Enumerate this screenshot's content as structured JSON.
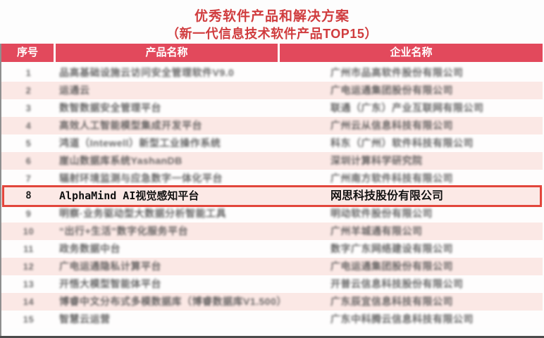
{
  "title": "优秀软件产品和解决方案",
  "subtitle": "（新一代信息技术软件产品TOP15）",
  "table": {
    "headers": [
      "序号",
      "产品名称",
      "企业名称"
    ],
    "rows": [
      {
        "no": "1",
        "product": "品高基础设施云访问安全管理软件V9.0",
        "company": "广州市品高软件股份有限公司",
        "highlight": false,
        "blurred": true
      },
      {
        "no": "2",
        "product": "运通云",
        "company": "广电运通集团股份有限公司",
        "highlight": false,
        "blurred": true
      },
      {
        "no": "3",
        "product": "数智数据安全管理平台",
        "company": "联通（广东）产业互联网有限公司",
        "highlight": false,
        "blurred": true
      },
      {
        "no": "4",
        "product": "高效人工智能模型集成开发平台",
        "company": "广州云从信息科技有限公司",
        "highlight": false,
        "blurred": true
      },
      {
        "no": "5",
        "product": "鸿道（Intewell）新型工业操作系统",
        "company": "科东（广州）软件科技有限公司",
        "highlight": false,
        "blurred": true
      },
      {
        "no": "6",
        "product": "崖山数据库系统YashanDB",
        "company": "深圳计算科学研究院",
        "highlight": false,
        "blurred": true
      },
      {
        "no": "7",
        "product": "辐射环境监测与应急数字一体化平台",
        "company": "广州南方软件科技有限公司",
        "highlight": false,
        "blurred": true
      },
      {
        "no": "8",
        "product": "AlphaMind AI视觉感知平台",
        "company": "网思科技股份有限公司",
        "highlight": true,
        "blurred": false
      },
      {
        "no": "9",
        "product": "明察·业务驱动型大数据分析智能工具",
        "company": "明动软件股份有限公司",
        "highlight": false,
        "blurred": true
      },
      {
        "no": "10",
        "product": "“出行+生活”数字化服务平台",
        "company": "广州羊城通有限公司",
        "highlight": false,
        "blurred": true
      },
      {
        "no": "11",
        "product": "政务数据中台",
        "company": "数字广东网络建设有限公司",
        "highlight": false,
        "blurred": true
      },
      {
        "no": "12",
        "product": "广电运通隐私计算平台",
        "company": "广电运通集团股份有限公司",
        "highlight": false,
        "blurred": true
      },
      {
        "no": "13",
        "product": "开悟大模型智能体平台",
        "company": "开普云信息科技股份有限公司",
        "highlight": false,
        "blurred": true
      },
      {
        "no": "14",
        "product": "博睿中文分布式多模数据库（博睿数据库V1.500）",
        "company": "广东辰宜信息科技有限公司",
        "highlight": false,
        "blurred": true
      },
      {
        "no": "15",
        "product": "智慧云运营",
        "company": "广东中科腾云信息科技有限公司",
        "highlight": false,
        "blurred": true
      }
    ]
  },
  "colors": {
    "accent_red": "#d03c3e",
    "header_bg": "#e2495c",
    "row_pink": "#fbe8e5",
    "highlight_border": "#e2463c",
    "highlight_bg": "#fce9e6"
  }
}
